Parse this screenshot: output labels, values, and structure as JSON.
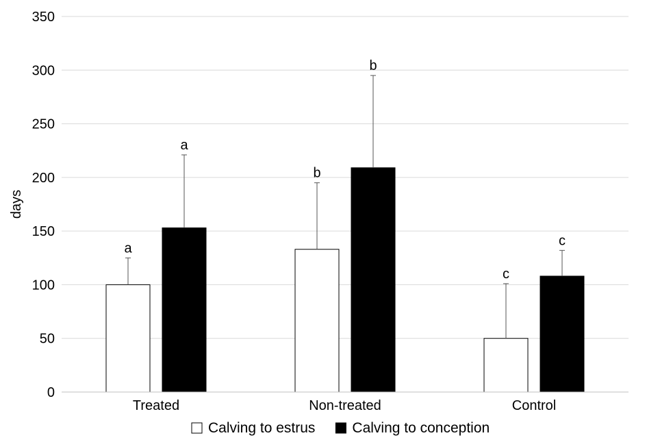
{
  "chart_data": {
    "type": "bar",
    "title": "",
    "xlabel": "",
    "ylabel": "days",
    "ylim": [
      0,
      350
    ],
    "yticks": [
      0,
      50,
      100,
      150,
      200,
      250,
      300,
      350
    ],
    "grid": true,
    "legend_position": "bottom",
    "categories": [
      "Treated",
      "Non-treated",
      "Control"
    ],
    "series": [
      {
        "name": "Calving to estrus",
        "fill": "#ffffff",
        "stroke": "#000000",
        "values": [
          100,
          133,
          50
        ],
        "error": [
          25,
          62,
          51
        ],
        "labels": [
          "a",
          "b",
          "c"
        ]
      },
      {
        "name": "Calving to conception",
        "fill": "#000000",
        "stroke": "#000000",
        "values": [
          153,
          209,
          108
        ],
        "error": [
          68,
          86,
          24
        ],
        "labels": [
          "a",
          "b",
          "c"
        ]
      }
    ]
  }
}
